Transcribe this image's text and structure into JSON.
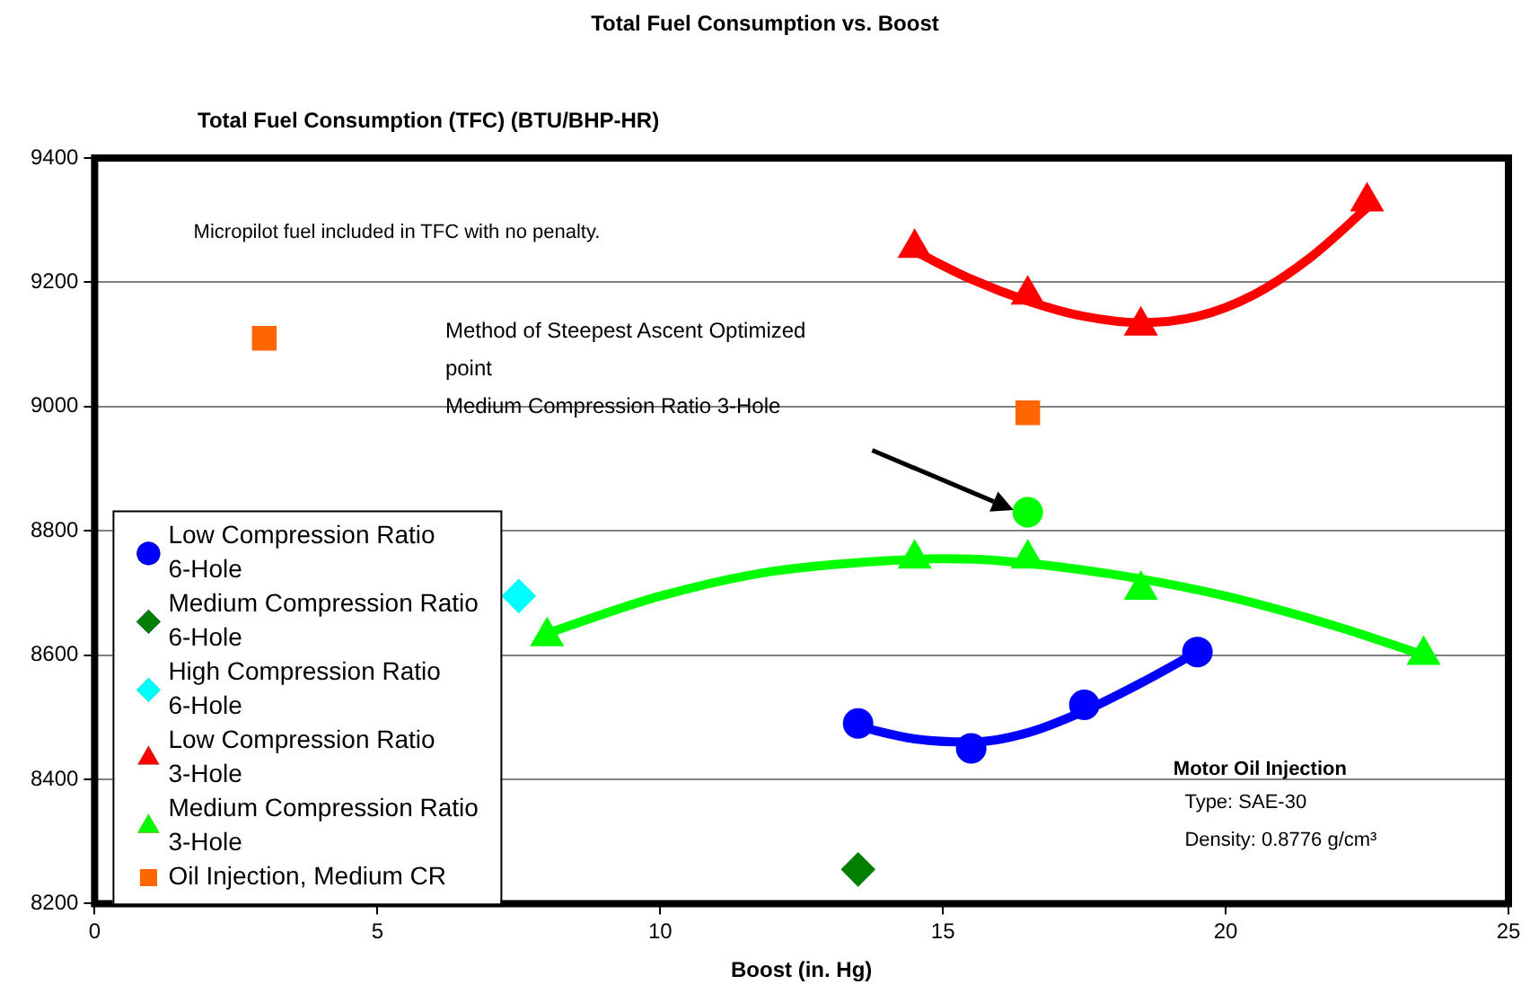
{
  "chart_data": {
    "type": "scatter",
    "title": "Total Fuel Consumption vs. Boost",
    "xlabel": "Boost (in. Hg)",
    "ylabel": "Total Fuel Consumption (TFC) (BTU/BHP-HR)",
    "xlim": [
      0,
      25
    ],
    "xticks": [
      0,
      5,
      10,
      15,
      20,
      25
    ],
    "ylim": [
      8200,
      9400
    ],
    "yticks": [
      8200,
      8400,
      8600,
      8800,
      9000,
      9200,
      9400
    ],
    "grid": "y",
    "legend": "bottom left",
    "series": [
      {
        "name": "Low Compression Ratio 6-Hole",
        "type": "scatter",
        "marker": "circle",
        "color": "#0000ff",
        "x": [
          13.5,
          15.5,
          17.5,
          19.5
        ],
        "values": [
          8490,
          8450,
          8520,
          8605
        ]
      },
      {
        "name": "Medium Compression Ratio 6-Hole",
        "type": "scatter",
        "marker": "diamond",
        "color": "#007f00",
        "x": [
          13.5
        ],
        "values": [
          8255
        ]
      },
      {
        "name": "High Compression Ratio 6-Hole",
        "type": "scatter",
        "marker": "diamond",
        "color": "#00ffff",
        "x": [
          7.5
        ],
        "values": [
          8695
        ]
      },
      {
        "name": "Low Compression Ratio 3-Hole",
        "type": "scatter",
        "marker": "triangle",
        "color": "#ff0000",
        "x": [
          14.5,
          16.5,
          18.5,
          22.5
        ],
        "values": [
          9255,
          9180,
          9130,
          9330
        ]
      },
      {
        "name": "Medium Compression Ratio 3-Hole",
        "type": "scatter",
        "marker": "triangle",
        "color": "#00ff00",
        "x": [
          8,
          14.5,
          16.5,
          18.5,
          23.5
        ],
        "values": [
          8630,
          8755,
          8755,
          8705,
          8600
        ]
      },
      {
        "name": "Oil Injection, Medium CR",
        "type": "scatter",
        "marker": "square",
        "color": "#ff6600",
        "x": [
          3,
          16.5
        ],
        "values": [
          9110,
          8990
        ]
      },
      {
        "type": "scatter",
        "marker": "circle",
        "color": "#00ff00",
        "x": [
          16.5
        ],
        "values": [
          8830
        ]
      },
      {
        "type": "line",
        "marker": "none",
        "color": "#0000ff",
        "x": [
          13.5,
          14.5,
          15.5,
          16.5,
          17.5,
          18.5,
          19.5
        ],
        "values": [
          8485,
          8465,
          8460,
          8475,
          8510,
          8555,
          8605
        ]
      },
      {
        "type": "line",
        "marker": "none",
        "color": "#ff0000",
        "x": [
          14.5,
          15.5,
          16.5,
          17.5,
          18.5,
          19.5,
          20.5,
          21.5,
          22.5
        ],
        "values": [
          9250,
          9205,
          9170,
          9145,
          9135,
          9145,
          9180,
          9240,
          9320
        ]
      },
      {
        "type": "line",
        "marker": "none",
        "color": "#00ff00",
        "x": [
          8,
          10,
          12,
          14,
          15,
          16,
          18,
          20,
          22,
          23.5
        ],
        "values": [
          8635,
          8695,
          8735,
          8752,
          8755,
          8752,
          8730,
          8695,
          8645,
          8600
        ]
      }
    ],
    "annotations": [
      "Micropilot fuel included in TFC with no penalty.",
      "Method of Steepest Ascent Optimized\npoint\nMedium Compression Ratio 3-Hole",
      "Motor Oil Injection",
      "Type: SAE-30",
      "Density: 0.8776 g/cm³"
    ]
  }
}
